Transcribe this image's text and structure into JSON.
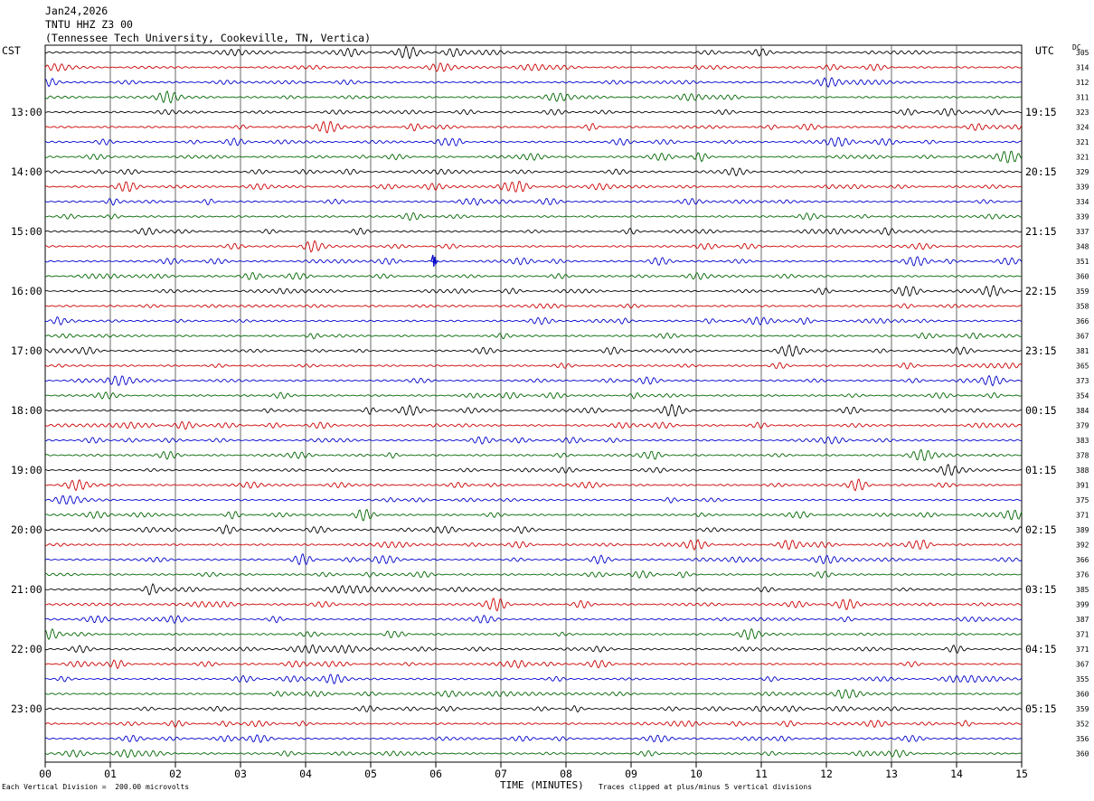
{
  "header": {
    "date": "Jan24,2026",
    "station": "TNTU HHZ Z3 00",
    "location": "(Tennessee Tech University, Cookeville, TN, Vertica)"
  },
  "chart_data": {
    "type": "line",
    "title": "TNTU HHZ Z3 00",
    "left_axis_label": "CST",
    "right_axis_label": "UTC",
    "dc_label": "DC",
    "xlabel": "TIME (MINUTES)",
    "x_ticks": [
      "00",
      "01",
      "02",
      "03",
      "04",
      "05",
      "06",
      "07",
      "08",
      "09",
      "10",
      "11",
      "12",
      "13",
      "14",
      "15"
    ],
    "xlim": [
      0,
      15
    ],
    "rows": 48,
    "row_minutes": 15,
    "left_hour_labels": [
      {
        "row": 4,
        "label": "13:00"
      },
      {
        "row": 8,
        "label": "14:00"
      },
      {
        "row": 12,
        "label": "15:00"
      },
      {
        "row": 16,
        "label": "16:00"
      },
      {
        "row": 20,
        "label": "17:00"
      },
      {
        "row": 24,
        "label": "18:00"
      },
      {
        "row": 28,
        "label": "19:00"
      },
      {
        "row": 32,
        "label": "20:00"
      },
      {
        "row": 36,
        "label": "21:00"
      },
      {
        "row": 40,
        "label": "22:00"
      },
      {
        "row": 44,
        "label": "23:00"
      }
    ],
    "right_hour_labels": [
      {
        "row": 4,
        "label": "19:15"
      },
      {
        "row": 8,
        "label": "20:15"
      },
      {
        "row": 12,
        "label": "21:15"
      },
      {
        "row": 16,
        "label": "22:15"
      },
      {
        "row": 20,
        "label": "23:15"
      },
      {
        "row": 24,
        "label": "00:15"
      },
      {
        "row": 28,
        "label": "01:15"
      },
      {
        "row": 32,
        "label": "02:15"
      },
      {
        "row": 36,
        "label": "03:15"
      },
      {
        "row": 40,
        "label": "04:15"
      },
      {
        "row": 44,
        "label": "05:15"
      }
    ],
    "dc_offsets": [
      "305",
      "314",
      "312",
      "311",
      "323",
      "324",
      "321",
      "321",
      "329",
      "339",
      "334",
      "339",
      "337",
      "348",
      "351",
      "360",
      "359",
      "358",
      "366",
      "367",
      "381",
      "365",
      "373",
      "354",
      "384",
      "379",
      "383",
      "378",
      "388",
      "391",
      "375",
      "371",
      "389",
      "392",
      "366",
      "376",
      "385",
      "399",
      "387",
      "371",
      "371",
      "367",
      "355",
      "360",
      "359",
      "352",
      "356",
      "360"
    ],
    "trace_colors": [
      "#000000",
      "#cc0000",
      "#0000cc",
      "#006600"
    ],
    "events": [
      {
        "row": 14,
        "minute": 5.97
      }
    ],
    "scale_note": "Each Vertical Division =  200.00 microvolts",
    "clip_note": "Traces clipped at plus/minus 5 vertical divisions"
  }
}
